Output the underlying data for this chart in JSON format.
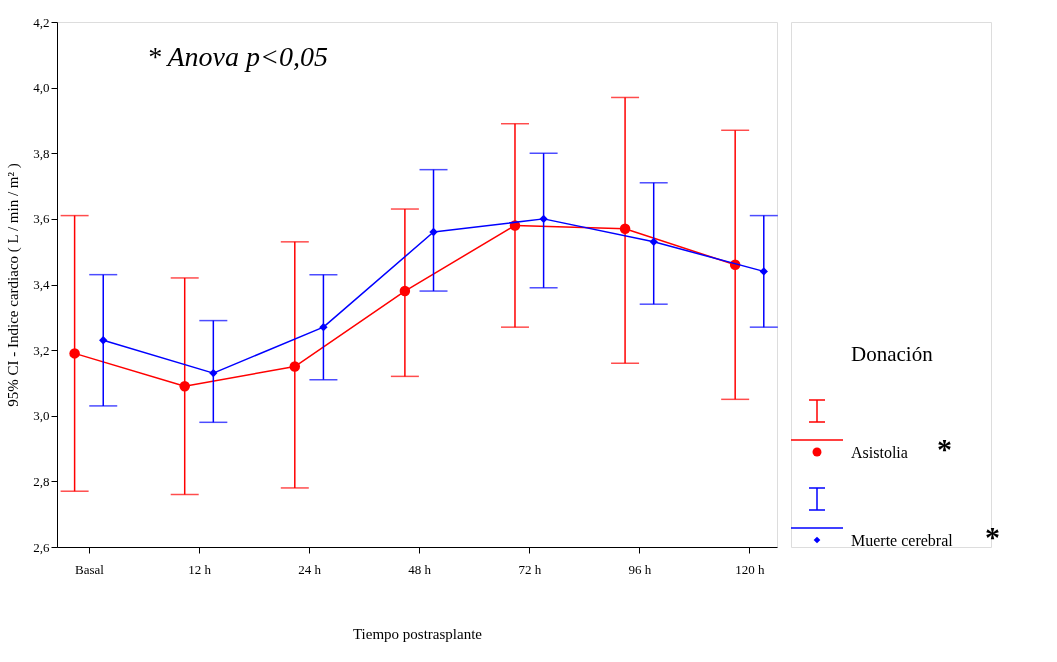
{
  "chart_data": {
    "type": "line",
    "xlabel": "Tiempo postrasplante",
    "ylabel": "95% CI - Indice cardiaco ( L / min / m² )",
    "legend_title": "Donación",
    "categories": [
      "Basal",
      "12 h",
      "24 h",
      "48 h",
      "72 h",
      "96 h",
      "120 h"
    ],
    "ylim": [
      2.6,
      4.2
    ],
    "yticks": [
      {
        "value": 2.6,
        "label": "2,6"
      },
      {
        "value": 2.8,
        "label": "2,8"
      },
      {
        "value": 3.0,
        "label": "3,0"
      },
      {
        "value": 3.2,
        "label": "3,2"
      },
      {
        "value": 3.4,
        "label": "3,4"
      },
      {
        "value": 3.6,
        "label": "3,6"
      },
      {
        "value": 3.8,
        "label": "3,8"
      },
      {
        "value": 4.0,
        "label": "4,0"
      },
      {
        "value": 4.2,
        "label": "4,2"
      }
    ],
    "grid": false,
    "legend": "right",
    "annotations": [
      "* Anova p<0,05",
      "*",
      "*"
    ],
    "series": [
      {
        "name": "Asistolia",
        "color": "#ff0000",
        "marker": "circle",
        "values": [
          3.19,
          3.09,
          3.15,
          3.38,
          3.58,
          3.57,
          3.46
        ],
        "errors": [
          [
            2.77,
            3.61
          ],
          [
            2.76,
            3.42
          ],
          [
            2.78,
            3.53
          ],
          [
            3.12,
            3.63
          ],
          [
            3.27,
            3.89
          ],
          [
            3.16,
            3.97
          ],
          [
            3.05,
            3.87
          ]
        ]
      },
      {
        "name": "Muerte cerebral",
        "color": "#0000ff",
        "marker": "diamond",
        "values": [
          3.23,
          3.13,
          3.27,
          3.56,
          3.6,
          3.53,
          3.44
        ],
        "errors": [
          [
            3.03,
            3.43
          ],
          [
            2.98,
            3.29
          ],
          [
            3.11,
            3.43
          ],
          [
            3.38,
            3.75
          ],
          [
            3.39,
            3.8
          ],
          [
            3.34,
            3.71
          ],
          [
            3.27,
            3.61
          ]
        ]
      }
    ]
  }
}
